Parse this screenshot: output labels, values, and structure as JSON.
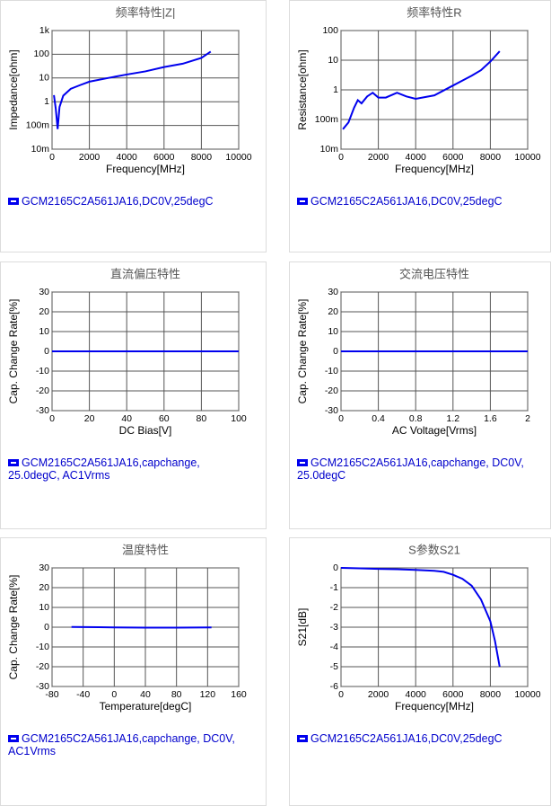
{
  "chart_data": [
    {
      "type": "line",
      "title": "频率特性|Z|",
      "xlabel": "Frequency[MHz]",
      "ylabel": "Impedance[ohm]",
      "log_y": true,
      "grid": true,
      "legend": "below",
      "x": [
        100,
        200,
        300,
        400,
        600,
        1000,
        1500,
        2000,
        3000,
        4000,
        5000,
        6000,
        7000,
        8000,
        8500
      ],
      "series": [
        {
          "name": "GCM2165C2A561JA16,DC0V,25degC",
          "color": "#0000ee",
          "values": [
            1.9,
            0.5,
            0.07,
            0.6,
            1.8,
            3.5,
            5,
            7,
            10,
            14,
            19,
            29,
            40,
            70,
            130
          ]
        }
      ],
      "xlim": [
        0,
        10000
      ],
      "xticks": [
        0,
        2000,
        4000,
        6000,
        8000,
        10000
      ],
      "ylim": [
        0.01,
        1000
      ],
      "yticks": [
        {
          "value": 0.01,
          "label": "10m"
        },
        {
          "value": 0.1,
          "label": "100m"
        },
        1,
        10,
        100,
        {
          "value": 1000,
          "label": "1k"
        }
      ]
    },
    {
      "type": "line",
      "title": "频率特性R",
      "xlabel": "Frequency[MHz]",
      "ylabel": "Resistance[ohm]",
      "log_y": true,
      "grid": true,
      "legend": "below",
      "x": [
        100,
        400,
        700,
        900,
        1100,
        1400,
        1700,
        2000,
        2400,
        3000,
        3500,
        4000,
        5000,
        6000,
        7000,
        7500,
        8000,
        8500
      ],
      "series": [
        {
          "name": "GCM2165C2A561JA16,DC0V,25degC",
          "color": "#0000ee",
          "values": [
            0.047,
            0.08,
            0.25,
            0.45,
            0.35,
            0.6,
            0.8,
            0.55,
            0.55,
            0.8,
            0.6,
            0.5,
            0.65,
            1.4,
            3,
            4.6,
            9,
            20
          ]
        }
      ],
      "xlim": [
        0,
        10000
      ],
      "xticks": [
        0,
        2000,
        4000,
        6000,
        8000,
        10000
      ],
      "ylim": [
        0.01,
        100
      ],
      "yticks": [
        {
          "value": 0.01,
          "label": "10m"
        },
        {
          "value": 0.1,
          "label": "100m"
        },
        1,
        10,
        100
      ]
    },
    {
      "type": "line",
      "title": "直流偏压特性",
      "xlabel": "DC Bias[V]",
      "ylabel": "Cap. Change Rate[%]",
      "log_y": false,
      "grid": true,
      "legend": "below",
      "x": [
        0,
        20,
        40,
        60,
        80,
        100
      ],
      "series": [
        {
          "name": "GCM2165C2A561JA16,capchange, 25.0degC, AC1Vrms",
          "color": "#0000ee",
          "values": [
            0,
            0,
            0,
            0,
            0,
            0
          ]
        }
      ],
      "xlim": [
        0,
        100
      ],
      "xticks": [
        0,
        20,
        40,
        60,
        80,
        100
      ],
      "ylim": [
        -30,
        30
      ],
      "yticks": [
        -30,
        -20,
        -10,
        0,
        10,
        20,
        30
      ]
    },
    {
      "type": "line",
      "title": "交流电压特性",
      "xlabel": "AC Voltage[Vrms]",
      "ylabel": "Cap. Change Rate[%]",
      "log_y": false,
      "grid": true,
      "legend": "below",
      "x": [
        0,
        0.4,
        0.8,
        1.2,
        1.6,
        2
      ],
      "series": [
        {
          "name": "GCM2165C2A561JA16,capchange, DC0V, 25.0degC",
          "color": "#0000ee",
          "values": [
            0,
            0,
            0,
            0,
            0,
            0
          ]
        }
      ],
      "xlim": [
        0,
        2
      ],
      "xticks": [
        0,
        0.4,
        0.8,
        1.2,
        1.6,
        2
      ],
      "ylim": [
        -30,
        30
      ],
      "yticks": [
        -30,
        -20,
        -10,
        0,
        10,
        20,
        30
      ]
    },
    {
      "type": "line",
      "title": "温度特性",
      "xlabel": "Temperature[degC]",
      "ylabel": "Cap. Change Rate[%]",
      "log_y": false,
      "grid": true,
      "legend": "below",
      "x": [
        -55,
        -20,
        0,
        40,
        80,
        125
      ],
      "series": [
        {
          "name": "GCM2165C2A561JA16,capchange, DC0V, AC1Vrms",
          "color": "#0000ee",
          "values": [
            0.1,
            0,
            -0.1,
            -0.2,
            -0.2,
            -0.1
          ]
        }
      ],
      "xlim": [
        -80,
        160
      ],
      "xticks": [
        -80,
        -40,
        0,
        40,
        80,
        120,
        160
      ],
      "ylim": [
        -30,
        30
      ],
      "yticks": [
        -30,
        -20,
        -10,
        0,
        10,
        20,
        30
      ]
    },
    {
      "type": "line",
      "title": "S参数S21",
      "xlabel": "Frequency[MHz]",
      "ylabel": "S21[dB]",
      "log_y": false,
      "grid": true,
      "legend": "below",
      "x": [
        0,
        1000,
        2000,
        3000,
        4000,
        5000,
        5500,
        6000,
        6500,
        7000,
        7500,
        8000,
        8250,
        8500
      ],
      "series": [
        {
          "name": "GCM2165C2A561JA16,DC0V,25degC",
          "color": "#0000ee",
          "values": [
            0,
            -0.02,
            -0.05,
            -0.07,
            -0.1,
            -0.15,
            -0.2,
            -0.35,
            -0.55,
            -0.9,
            -1.6,
            -2.7,
            -3.7,
            -5
          ]
        }
      ],
      "xlim": [
        0,
        10000
      ],
      "xticks": [
        0,
        2000,
        4000,
        6000,
        8000,
        10000
      ],
      "ylim": [
        -6,
        0
      ],
      "yticks": [
        -6,
        -5,
        -4,
        -3,
        -2,
        -1,
        0
      ]
    }
  ]
}
